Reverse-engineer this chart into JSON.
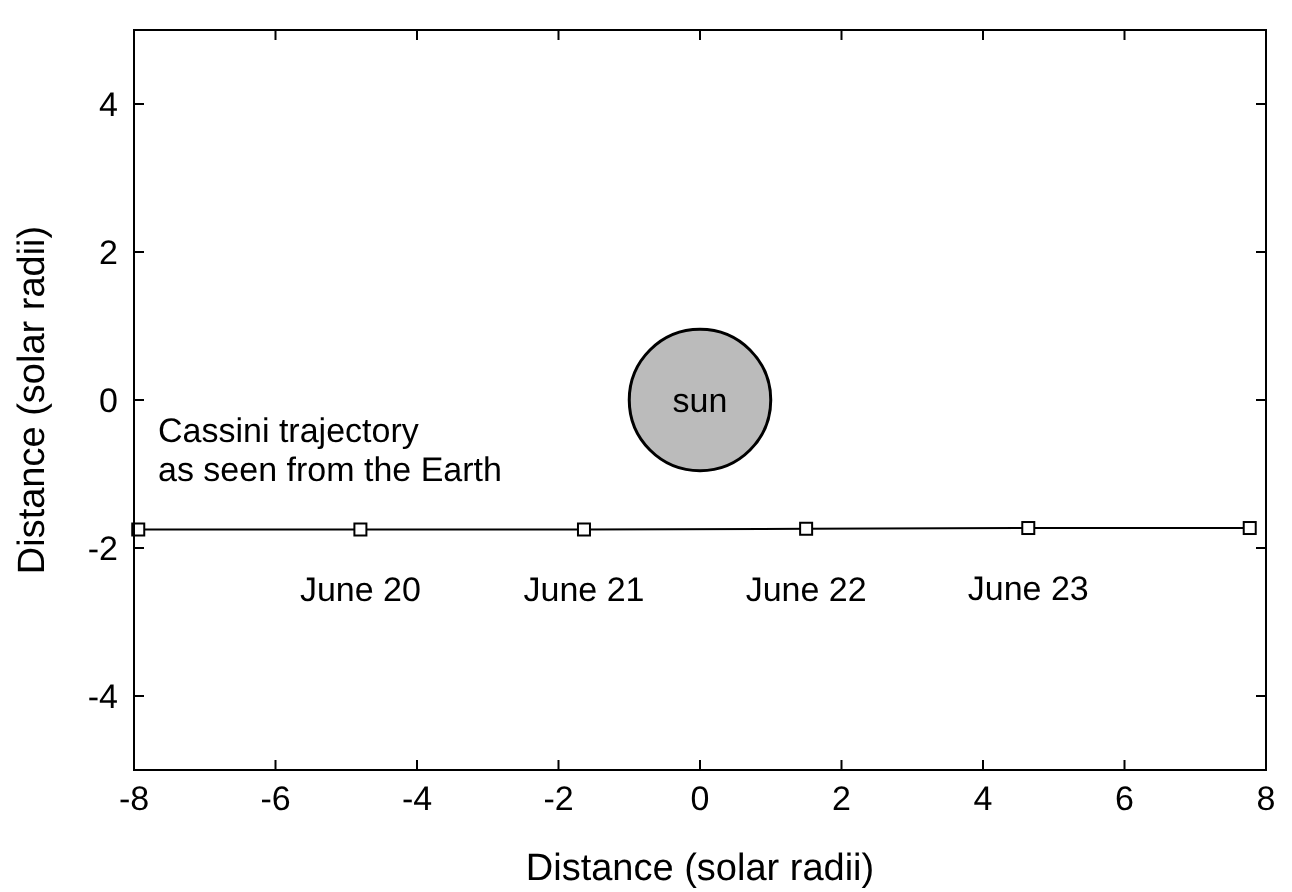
{
  "chart_data": {
    "type": "line",
    "xlabel": "Distance (solar radii)",
    "ylabel": "Distance (solar radii)",
    "xlim": [
      -8,
      8
    ],
    "ylim": [
      -5,
      5
    ],
    "xticks": [
      -8,
      -6,
      -4,
      -2,
      0,
      2,
      4,
      6,
      8
    ],
    "yticks": [
      -4,
      -2,
      0,
      2,
      4
    ],
    "grid": false,
    "series": [
      {
        "x": [
          -7.94,
          -4.8,
          -1.64,
          1.5,
          4.64,
          7.77
        ],
        "values": [
          -1.75,
          -1.75,
          -1.75,
          -1.74,
          -1.73,
          -1.73
        ],
        "color": "#000000",
        "marker": "square",
        "line_style": "solid"
      },
      {
        "type": "bubble",
        "x": [
          0
        ],
        "values": [
          0
        ],
        "sizes": [
          1
        ],
        "color": "#bbbbbb"
      }
    ],
    "annotations": [
      {
        "text": "sun",
        "x": 0,
        "y": 0
      },
      "Cassini trajectory\nas seen from the Earth",
      "June 20",
      "June 21",
      "June 22",
      "June 23"
    ]
  }
}
